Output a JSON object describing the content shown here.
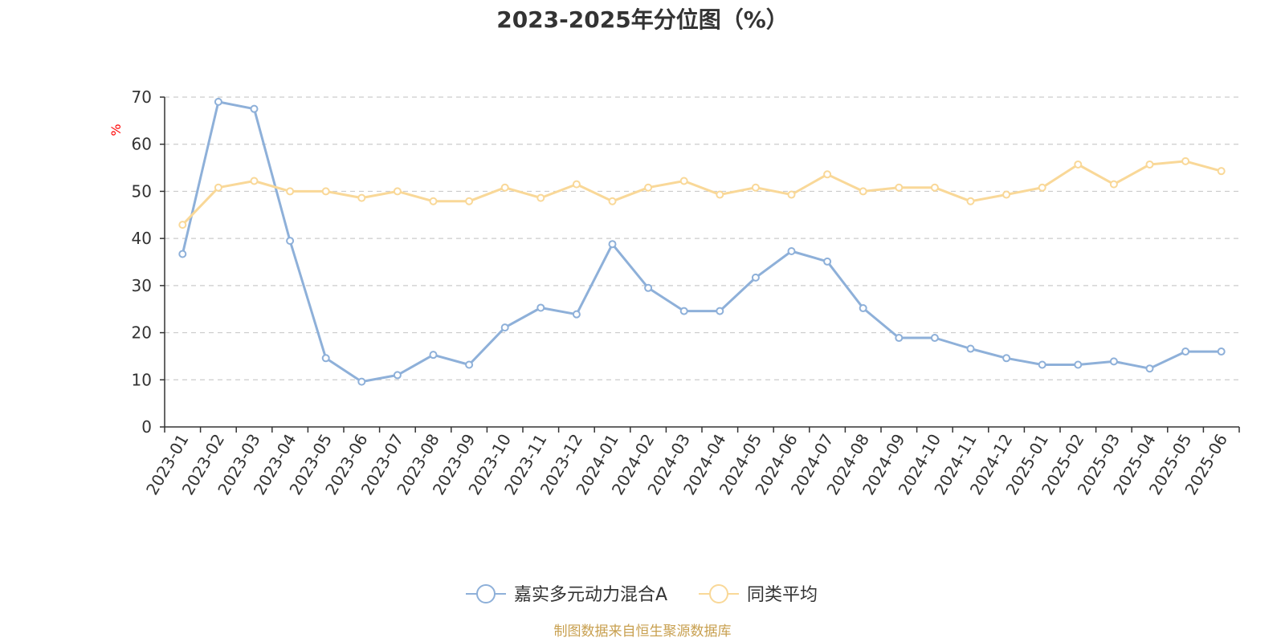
{
  "chart_data": {
    "type": "line",
    "title": "2023-2025年分位图（%）",
    "ylabel": "%",
    "ylim": [
      0,
      70
    ],
    "yticks": [
      0,
      10,
      20,
      30,
      40,
      50,
      60,
      70
    ],
    "grid": true,
    "legend_position": "bottom",
    "categories": [
      "2023-01",
      "2023-02",
      "2023-03",
      "2023-04",
      "2023-05",
      "2023-06",
      "2023-07",
      "2023-08",
      "2023-09",
      "2023-10",
      "2023-11",
      "2023-12",
      "2024-01",
      "2024-02",
      "2024-03",
      "2024-04",
      "2024-05",
      "2024-06",
      "2024-07",
      "2024-08",
      "2024-09",
      "2024-10",
      "2024-11",
      "2024-12",
      "2025-01",
      "2025-02",
      "2025-03",
      "2025-04",
      "2025-05",
      "2025-06"
    ],
    "series": [
      {
        "name": "嘉实多元动力混合A",
        "color": "#8eb0d9",
        "values": [
          36.7,
          69.0,
          67.5,
          39.5,
          14.6,
          9.6,
          11.0,
          15.3,
          13.2,
          21.1,
          25.3,
          23.9,
          38.8,
          29.5,
          24.6,
          24.6,
          31.7,
          37.3,
          35.1,
          25.2,
          18.9,
          18.9,
          16.6,
          14.6,
          13.2,
          13.2,
          13.9,
          12.4,
          16.0,
          16.0
        ]
      },
      {
        "name": "同类平均",
        "color": "#f9d898",
        "values": [
          42.9,
          50.8,
          52.2,
          50.0,
          50.0,
          48.6,
          50.0,
          47.9,
          47.9,
          50.8,
          48.6,
          51.5,
          47.9,
          50.8,
          52.2,
          49.3,
          50.8,
          49.3,
          53.6,
          50.0,
          50.8,
          50.8,
          47.9,
          49.3,
          50.8,
          55.7,
          51.5,
          55.7,
          56.4,
          54.3
        ]
      }
    ],
    "source_text": "制图数据来自恒生聚源数据库",
    "colors": {
      "axis": "#333333",
      "grid": "#cccccc",
      "unit_label": "#ff0000",
      "source_text": "#c8a050"
    }
  }
}
